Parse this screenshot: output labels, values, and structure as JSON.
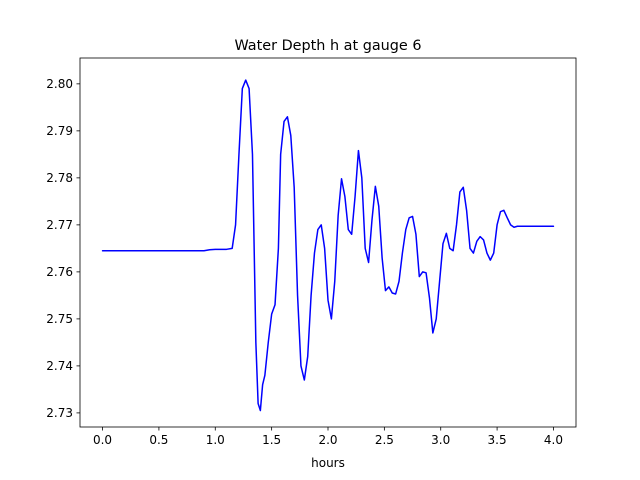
{
  "chart_data": {
    "type": "line",
    "title": "Water Depth h at gauge 6",
    "xlabel": "hours",
    "ylabel": "",
    "xlim": [
      -0.2,
      4.2
    ],
    "ylim": [
      2.727,
      2.8055
    ],
    "grid": false,
    "xticks": [
      0.0,
      0.5,
      1.0,
      1.5,
      2.0,
      2.5,
      3.0,
      3.5,
      4.0
    ],
    "xtick_labels": [
      "0.0",
      "0.5",
      "1.0",
      "1.5",
      "2.0",
      "2.5",
      "3.0",
      "3.5",
      "4.0"
    ],
    "yticks": [
      2.73,
      2.74,
      2.75,
      2.76,
      2.77,
      2.78,
      2.79,
      2.8
    ],
    "ytick_labels": [
      "2.73",
      "2.74",
      "2.75",
      "2.76",
      "2.77",
      "2.78",
      "2.79",
      "2.80"
    ],
    "series": [
      {
        "color": "#0000ff",
        "x": [
          0.0,
          0.5,
          0.9,
          0.95,
          1.0,
          1.1,
          1.15,
          1.18,
          1.21,
          1.24,
          1.27,
          1.3,
          1.33,
          1.36,
          1.38,
          1.4,
          1.42,
          1.44,
          1.47,
          1.5,
          1.53,
          1.56,
          1.58,
          1.61,
          1.64,
          1.67,
          1.7,
          1.73,
          1.76,
          1.79,
          1.82,
          1.85,
          1.88,
          1.91,
          1.94,
          1.97,
          2.0,
          2.03,
          2.06,
          2.09,
          2.12,
          2.15,
          2.18,
          2.21,
          2.24,
          2.27,
          2.3,
          2.33,
          2.36,
          2.39,
          2.42,
          2.45,
          2.48,
          2.51,
          2.54,
          2.57,
          2.6,
          2.63,
          2.66,
          2.69,
          2.72,
          2.75,
          2.78,
          2.81,
          2.84,
          2.87,
          2.9,
          2.93,
          2.96,
          2.99,
          3.02,
          3.05,
          3.08,
          3.11,
          3.14,
          3.17,
          3.2,
          3.23,
          3.26,
          3.29,
          3.32,
          3.35,
          3.38,
          3.41,
          3.44,
          3.47,
          3.5,
          3.53,
          3.56,
          3.59,
          3.62,
          3.65,
          3.68,
          3.71,
          3.74,
          3.77,
          3.8,
          3.83,
          3.86,
          3.89,
          3.92,
          3.95,
          4.0
        ],
        "y": [
          2.7645,
          2.7645,
          2.7645,
          2.7647,
          2.7648,
          2.7648,
          2.765,
          2.77,
          2.785,
          2.799,
          2.8008,
          2.799,
          2.785,
          2.745,
          2.732,
          2.7305,
          2.736,
          2.738,
          2.745,
          2.751,
          2.753,
          2.765,
          2.785,
          2.792,
          2.793,
          2.789,
          2.778,
          2.755,
          2.74,
          2.737,
          2.742,
          2.755,
          2.764,
          2.769,
          2.77,
          2.765,
          2.754,
          2.75,
          2.758,
          2.772,
          2.7798,
          2.776,
          2.769,
          2.768,
          2.776,
          2.7858,
          2.78,
          2.765,
          2.762,
          2.771,
          2.7782,
          2.774,
          2.763,
          2.756,
          2.7568,
          2.7555,
          2.7553,
          2.758,
          2.764,
          2.769,
          2.7715,
          2.7718,
          2.768,
          2.759,
          2.76,
          2.7598,
          2.7545,
          2.747,
          2.75,
          2.758,
          2.766,
          2.7682,
          2.765,
          2.7645,
          2.77,
          2.777,
          2.778,
          2.773,
          2.765,
          2.764,
          2.7665,
          2.7675,
          2.7668,
          2.764,
          2.7625,
          2.764,
          2.77,
          2.7728,
          2.7731,
          2.7715,
          2.77,
          2.7695,
          2.7697,
          2.7697,
          2.7697,
          2.7697,
          2.7697,
          2.7697,
          2.7697,
          2.7697,
          2.7697,
          2.7697,
          2.7697
        ]
      }
    ]
  }
}
